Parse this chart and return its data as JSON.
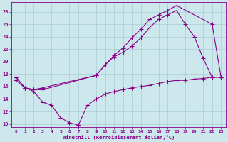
{
  "background_color": "#cde8ec",
  "grid_color": "#aacdd4",
  "line_color": "#880088",
  "xlabel": "Windchill (Refroidissement éolien,°C)",
  "xlim": [
    -0.5,
    23.5
  ],
  "ylim": [
    9.5,
    29.5
  ],
  "yticks": [
    10,
    12,
    14,
    16,
    18,
    20,
    22,
    24,
    26,
    28
  ],
  "xticks": [
    0,
    1,
    2,
    3,
    4,
    5,
    6,
    7,
    8,
    9,
    10,
    11,
    12,
    13,
    14,
    15,
    16,
    17,
    18,
    19,
    20,
    21,
    22,
    23
  ],
  "line1_x": [
    0,
    1,
    2,
    3,
    9,
    10,
    11,
    12,
    13,
    14,
    15,
    16,
    17,
    18,
    22,
    23
  ],
  "line1_y": [
    17.5,
    15.8,
    15.5,
    15.5,
    17.8,
    19.5,
    21.0,
    22.2,
    23.8,
    25.2,
    26.8,
    27.5,
    28.2,
    29.0,
    26.0,
    17.5
  ],
  "line2_x": [
    0,
    1,
    2,
    3,
    9,
    10,
    11,
    12,
    13,
    14,
    15,
    16,
    17,
    18,
    19,
    20,
    21,
    22,
    23
  ],
  "line2_y": [
    17.5,
    15.8,
    15.5,
    15.8,
    17.8,
    19.5,
    20.8,
    21.5,
    22.5,
    23.8,
    25.5,
    26.8,
    27.5,
    28.2,
    26.0,
    24.0,
    20.5,
    17.5,
    17.5
  ],
  "line3_x": [
    0,
    1,
    2,
    3,
    4,
    5,
    6,
    7,
    8,
    9,
    10,
    11,
    12,
    13,
    14,
    15,
    16,
    17,
    18,
    19,
    20,
    21,
    22,
    23
  ],
  "line3_y": [
    17.0,
    15.8,
    15.2,
    13.5,
    13.0,
    11.0,
    10.2,
    9.8,
    13.0,
    14.0,
    14.8,
    15.2,
    15.5,
    15.8,
    16.0,
    16.2,
    16.5,
    16.8,
    17.0,
    17.0,
    17.2,
    17.3,
    17.5,
    17.5
  ]
}
